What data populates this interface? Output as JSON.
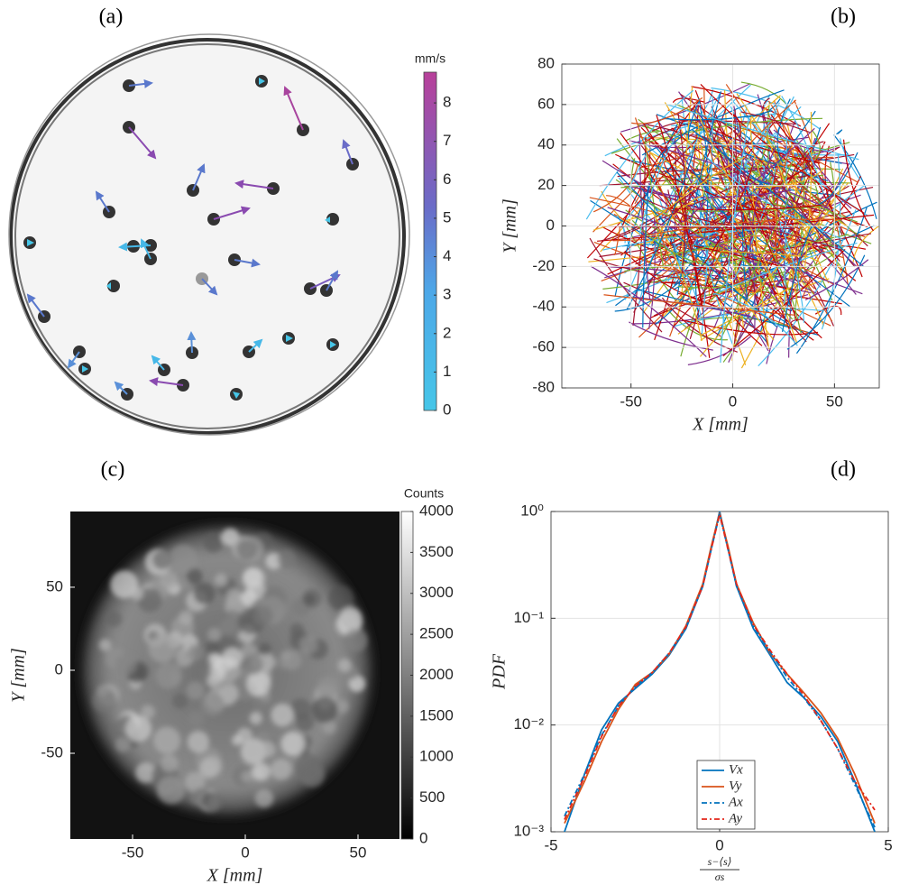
{
  "chart_data": [
    {
      "type": "image",
      "panel": "(a)",
      "colorbar": {
        "label": "mm/s",
        "lim": [
          0,
          8.8
        ],
        "ticks": [
          0,
          1,
          2,
          3,
          4,
          5,
          6,
          7,
          8
        ]
      }
    },
    {
      "type": "trajectory",
      "panel": "(b)",
      "xlabel": "X [mm]",
      "ylabel": "Y [mm]",
      "xlim": [
        -84,
        72
      ],
      "ylim": [
        -80,
        80
      ],
      "xticks": [
        -50,
        0,
        50
      ],
      "yticks": [
        -80,
        -60,
        -40,
        -20,
        0,
        20,
        40,
        60,
        80
      ],
      "grid": true
    },
    {
      "type": "heatmap",
      "panel": "(c)",
      "xlabel": "X [mm]",
      "ylabel": "Y [mm]",
      "xlim": [
        -77.6,
        68.4
      ],
      "ylim": [
        -101.6,
        95.6
      ],
      "xticks": [
        -50,
        0,
        50
      ],
      "yticks": [
        -50,
        0,
        50
      ],
      "colorbar": {
        "label": "Counts",
        "lim": [
          0,
          4000
        ],
        "ticks": [
          0,
          500,
          1000,
          1500,
          2000,
          2500,
          3000,
          3500,
          4000
        ]
      }
    },
    {
      "type": "line",
      "panel": "(d)",
      "ylabel": "PDF",
      "xlabel_numerator": "s−⟨s⟩",
      "xlabel_denominator": "σs",
      "log_y": true,
      "grid": true,
      "xlim": [
        -5,
        5
      ],
      "ylim": [
        0.001,
        1
      ],
      "xticks": [
        -5,
        0,
        5
      ],
      "yticks": [
        {
          "value": 0.001,
          "label": "10⁻³"
        },
        {
          "value": 0.01,
          "label": "10⁻²"
        },
        {
          "value": 0.1,
          "label": "10⁻¹"
        },
        {
          "value": 1,
          "label": "10⁰"
        }
      ],
      "x": [
        -4.6,
        -4,
        -3.5,
        -3,
        -2.5,
        -2,
        -1.5,
        -1,
        -0.5,
        -0.25,
        0,
        0.25,
        0.5,
        1,
        1.5,
        2,
        2.5,
        3,
        3.5,
        4,
        4.6
      ],
      "series": [
        {
          "name": "Vx",
          "color": "#0072bd",
          "dash": "solid",
          "values": [
            0.001,
            0.0035,
            0.009,
            0.016,
            0.022,
            0.03,
            0.045,
            0.08,
            0.2,
            0.45,
            1,
            0.45,
            0.2,
            0.08,
            0.045,
            0.025,
            0.018,
            0.012,
            0.007,
            0.003,
            0.001
          ]
        },
        {
          "name": "Vy",
          "color": "#d95319",
          "dash": "solid",
          "values": [
            0.0012,
            0.003,
            0.007,
            0.014,
            0.024,
            0.031,
            0.046,
            0.085,
            0.21,
            0.47,
            0.97,
            0.47,
            0.21,
            0.09,
            0.047,
            0.03,
            0.02,
            0.013,
            0.0075,
            0.0035,
            0.0012
          ]
        },
        {
          "name": "Ax",
          "color": "#0072bd",
          "dash": "dashdot",
          "values": [
            0.0014,
            0.0035,
            0.008,
            0.015,
            0.023,
            0.031,
            0.047,
            0.082,
            0.2,
            0.44,
            0.95,
            0.44,
            0.2,
            0.085,
            0.048,
            0.028,
            0.018,
            0.011,
            0.006,
            0.0028,
            0.0011
          ]
        },
        {
          "name": "Ay",
          "color": "#e3261a",
          "dash": "dashdot",
          "values": [
            0.0013,
            0.0033,
            0.0078,
            0.015,
            0.023,
            0.031,
            0.047,
            0.083,
            0.2,
            0.44,
            0.94,
            0.44,
            0.21,
            0.087,
            0.05,
            0.03,
            0.019,
            0.011,
            0.006,
            0.003,
            0.0016
          ]
        }
      ]
    }
  ]
}
